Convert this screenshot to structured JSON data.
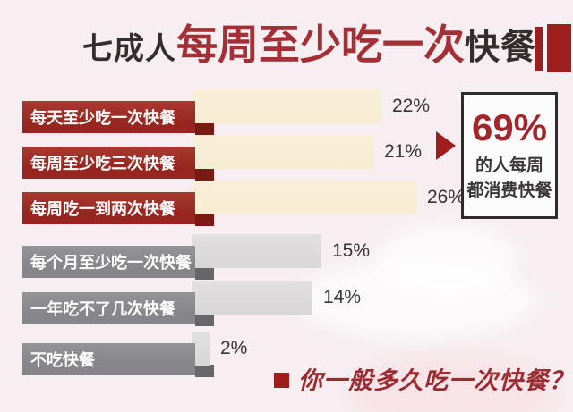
{
  "title": {
    "part_dark": "七成人",
    "part_red": "每周至少吃一次",
    "part_dark2": "快餐"
  },
  "chart_data": {
    "type": "bar",
    "orientation": "horizontal",
    "title": "七成人每周至少吃一次快餐",
    "categories": [
      "每天至少吃一次快餐",
      "每周至少吃三次快餐",
      "每周吃一到两次快餐",
      "每个月至少吃一次快餐",
      "一年吃不了几次快餐",
      "不吃快餐"
    ],
    "values": [
      22,
      21,
      26,
      15,
      14,
      2
    ],
    "value_labels": [
      "22%",
      "21%",
      "26%",
      "15%",
      "14%",
      "2%"
    ],
    "groups": [
      "weekly",
      "weekly",
      "weekly",
      "rare",
      "rare",
      "rare"
    ],
    "xlim": [
      0,
      30
    ],
    "grid": false,
    "legend": "none",
    "annotation": {
      "value": "69%",
      "line1": "的人每周",
      "line2": "都消费快餐"
    }
  },
  "question": "你一般多久吃一次快餐？",
  "colors": {
    "background": "#f6eef0",
    "title_dark": "#332d2e",
    "title_red": "#a33036",
    "deco_red": "#9e1e1e",
    "red_label_box": "#96261f",
    "red_fold": "#7a1a15",
    "cream_bar": "#f8edd3",
    "gray_label_box": "#85858a",
    "gray_fold": "#67676a",
    "gray_bar": "#d9d6d7",
    "value_text": "#3b3435",
    "highlight_red": "#a3262c",
    "question_red": "#9c2b31"
  }
}
